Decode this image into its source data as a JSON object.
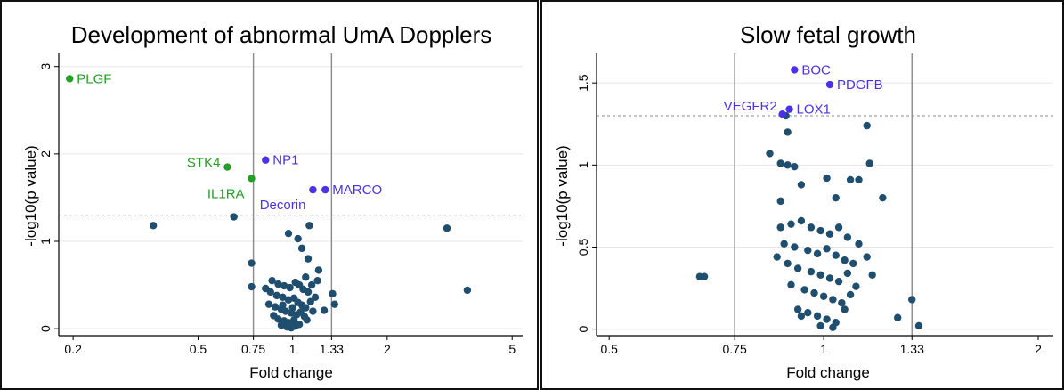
{
  "colors": {
    "point": "#1f4e6e",
    "green_label": "#22a022",
    "blue_label": "#4b32e6",
    "grid": "#e6e6e6",
    "ref_line": "#8a8a8a",
    "threshold": "#8a8a8a"
  },
  "chart_data": [
    {
      "type": "scatter",
      "title": "Development of abnormal UmA Dopplers",
      "xlabel": "Fold change",
      "ylabel": "-log10(p value)",
      "x_scale": "log",
      "xlim": [
        0.18,
        5.4
      ],
      "ylim": [
        -0.08,
        3.15
      ],
      "x_ticks": [
        0.2,
        0.5,
        0.75,
        1,
        1.33,
        2,
        5
      ],
      "x_tick_labels": [
        "0.2",
        "0.5",
        "0.75",
        "1",
        "1.33",
        "2",
        "5"
      ],
      "y_ticks": [
        0,
        1,
        2,
        3
      ],
      "y_tick_labels": [
        "0",
        "1",
        "2",
        "3"
      ],
      "vlines": [
        0.75,
        1.33
      ],
      "threshold": 1.3,
      "grid": true,
      "labeled_points": [
        {
          "label": "PLGF",
          "x": 0.195,
          "y": 2.86,
          "color": "green",
          "label_pos": "right"
        },
        {
          "label": "STK4",
          "x": 0.62,
          "y": 1.85,
          "color": "green",
          "label_pos": "left"
        },
        {
          "label": "IL1RA",
          "x": 0.74,
          "y": 1.72,
          "color": "green",
          "label_pos": "below-left"
        },
        {
          "label": "NP1",
          "x": 0.82,
          "y": 1.93,
          "color": "blue",
          "label_pos": "right"
        },
        {
          "label": "Decorin",
          "x": 1.16,
          "y": 1.59,
          "color": "blue",
          "label_pos": "below-left"
        },
        {
          "label": "MARCO",
          "x": 1.27,
          "y": 1.59,
          "color": "blue",
          "label_pos": "right"
        }
      ],
      "points": [
        [
          0.36,
          1.18
        ],
        [
          0.65,
          1.28
        ],
        [
          3.1,
          1.15
        ],
        [
          3.6,
          0.44
        ],
        [
          1.13,
          1.18
        ],
        [
          0.97,
          1.09
        ],
        [
          1.04,
          1.03
        ],
        [
          1.07,
          0.92
        ],
        [
          0.74,
          0.75
        ],
        [
          1.12,
          0.8
        ],
        [
          1.21,
          0.67
        ],
        [
          0.74,
          0.48
        ],
        [
          1.1,
          0.59
        ],
        [
          1.2,
          0.55
        ],
        [
          1.34,
          0.4
        ],
        [
          1.36,
          0.28
        ],
        [
          1.26,
          0.21
        ],
        [
          1.16,
          0.2
        ],
        [
          0.86,
          0.55
        ],
        [
          0.9,
          0.51
        ],
        [
          0.94,
          0.49
        ],
        [
          0.98,
          0.47
        ],
        [
          1.02,
          0.53
        ],
        [
          1.05,
          0.5
        ],
        [
          1.08,
          0.45
        ],
        [
          1.12,
          0.42
        ],
        [
          0.85,
          0.42
        ],
        [
          0.89,
          0.38
        ],
        [
          0.93,
          0.36
        ],
        [
          0.97,
          0.33
        ],
        [
          1.01,
          0.35
        ],
        [
          1.04,
          0.3
        ],
        [
          1.07,
          0.27
        ],
        [
          1.1,
          0.24
        ],
        [
          1.14,
          0.31
        ],
        [
          0.84,
          0.28
        ],
        [
          0.88,
          0.25
        ],
        [
          0.92,
          0.22
        ],
        [
          0.95,
          0.2
        ],
        [
          0.99,
          0.18
        ],
        [
          1.03,
          0.16
        ],
        [
          1.06,
          0.19
        ],
        [
          1.09,
          0.14
        ],
        [
          0.87,
          0.15
        ],
        [
          0.9,
          0.11
        ],
        [
          0.94,
          0.09
        ],
        [
          0.97,
          0.07
        ],
        [
          1.0,
          0.06
        ],
        [
          1.02,
          0.03
        ],
        [
          1.05,
          0.05
        ],
        [
          0.92,
          0.04
        ],
        [
          0.96,
          0.02
        ],
        [
          0.99,
          0.01
        ],
        [
          1.01,
          0.1
        ],
        [
          0.93,
          0.27
        ],
        [
          1.0,
          0.24
        ],
        [
          1.11,
          0.1
        ],
        [
          0.82,
          0.46
        ],
        [
          1.15,
          0.5
        ],
        [
          1.18,
          0.36
        ]
      ]
    },
    {
      "type": "scatter",
      "title": "Slow fetal growth",
      "xlabel": "Fold change",
      "ylabel": "-log10(p value)",
      "x_scale": "log",
      "xlim": [
        0.48,
        2.1
      ],
      "ylim": [
        -0.04,
        1.68
      ],
      "x_ticks": [
        0.5,
        0.75,
        1,
        1.33,
        2
      ],
      "x_tick_labels": [
        "0.5",
        "0.75",
        "1",
        "1.33",
        "2"
      ],
      "y_ticks": [
        0,
        0.5,
        1,
        1.5
      ],
      "y_tick_labels": [
        "0",
        "0.5",
        "1",
        "1.5"
      ],
      "vlines": [
        0.75,
        1.33
      ],
      "threshold": 1.3,
      "grid": true,
      "labeled_points": [
        {
          "label": "BOC",
          "x": 0.91,
          "y": 1.58,
          "color": "blue",
          "label_pos": "right"
        },
        {
          "label": "PDGFB",
          "x": 1.02,
          "y": 1.49,
          "color": "blue",
          "label_pos": "right"
        },
        {
          "label": "VEGFR2",
          "x": 0.875,
          "y": 1.31,
          "color": "blue",
          "label_pos": "above-left"
        },
        {
          "label": "LOX1",
          "x": 0.895,
          "y": 1.34,
          "color": "blue",
          "label_pos": "right"
        }
      ],
      "points": [
        [
          0.885,
          1.3
        ],
        [
          1.15,
          1.24
        ],
        [
          0.89,
          1.2
        ],
        [
          0.84,
          1.07
        ],
        [
          0.87,
          1.01
        ],
        [
          0.89,
          1.0
        ],
        [
          0.91,
          0.99
        ],
        [
          1.16,
          1.01
        ],
        [
          1.01,
          0.92
        ],
        [
          1.09,
          0.91
        ],
        [
          1.12,
          0.91
        ],
        [
          0.93,
          0.88
        ],
        [
          1.04,
          0.8
        ],
        [
          1.21,
          0.8
        ],
        [
          0.87,
          0.78
        ],
        [
          0.67,
          0.32
        ],
        [
          0.68,
          0.32
        ],
        [
          1.33,
          0.18
        ],
        [
          1.36,
          0.02
        ],
        [
          1.27,
          0.07
        ],
        [
          0.87,
          0.62
        ],
        [
          0.9,
          0.64
        ],
        [
          0.93,
          0.66
        ],
        [
          0.96,
          0.62
        ],
        [
          0.99,
          0.6
        ],
        [
          1.02,
          0.58
        ],
        [
          1.05,
          0.62
        ],
        [
          1.08,
          0.56
        ],
        [
          0.88,
          0.52
        ],
        [
          0.91,
          0.5
        ],
        [
          0.95,
          0.48
        ],
        [
          0.98,
          0.46
        ],
        [
          1.01,
          0.49
        ],
        [
          1.04,
          0.45
        ],
        [
          1.07,
          0.42
        ],
        [
          1.1,
          0.4
        ],
        [
          0.89,
          0.4
        ],
        [
          0.92,
          0.37
        ],
        [
          0.96,
          0.35
        ],
        [
          0.99,
          0.33
        ],
        [
          1.02,
          0.31
        ],
        [
          1.05,
          0.29
        ],
        [
          1.08,
          0.34
        ],
        [
          1.11,
          0.26
        ],
        [
          0.9,
          0.27
        ],
        [
          0.94,
          0.24
        ],
        [
          0.97,
          0.22
        ],
        [
          1.0,
          0.2
        ],
        [
          1.03,
          0.18
        ],
        [
          1.06,
          0.16
        ],
        [
          1.09,
          0.21
        ],
        [
          0.92,
          0.12
        ],
        [
          0.95,
          0.1
        ],
        [
          0.98,
          0.08
        ],
        [
          1.01,
          0.06
        ],
        [
          1.04,
          0.04
        ],
        [
          1.07,
          0.12
        ],
        [
          0.99,
          0.02
        ],
        [
          1.03,
          0.01
        ],
        [
          0.93,
          0.08
        ],
        [
          1.15,
          0.44
        ],
        [
          1.17,
          0.33
        ],
        [
          0.86,
          0.44
        ],
        [
          1.12,
          0.52
        ]
      ]
    }
  ]
}
